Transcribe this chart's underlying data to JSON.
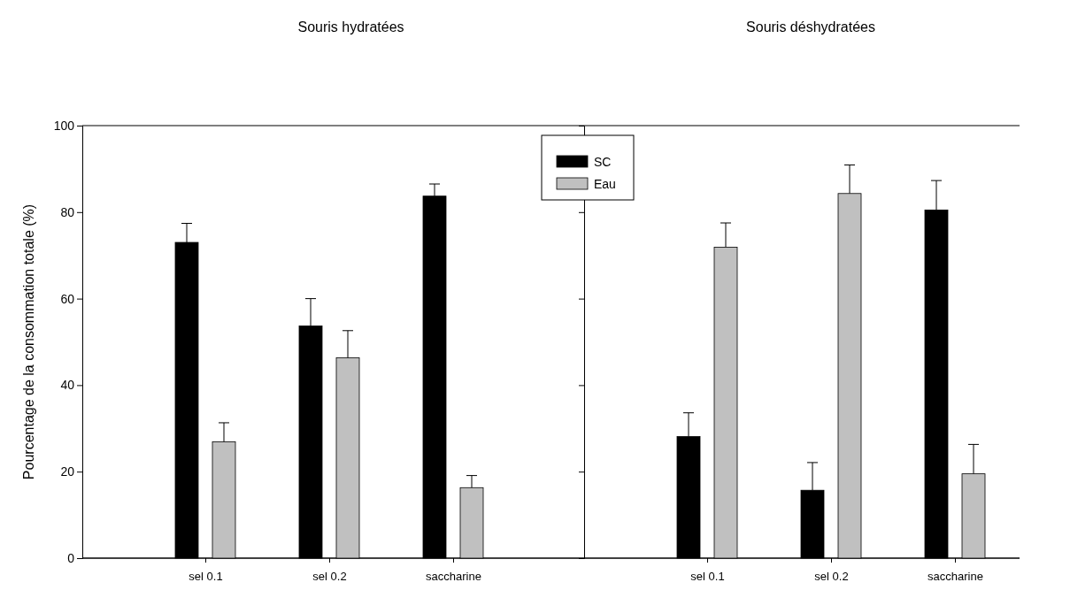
{
  "chart_data": [
    {
      "type": "bar",
      "title": "Souris hydratées",
      "ylabel": "Pourcentage de la consommation totale (%)",
      "categories": [
        "sel 0.1",
        "sel 0.2",
        "saccharine"
      ],
      "ylim": [
        0,
        100
      ],
      "yticks": [
        0,
        20,
        40,
        60,
        80,
        100
      ],
      "grid": false,
      "legend": false,
      "series": [
        {
          "color": "#000000",
          "values": [
            73.0,
            53.7,
            83.7
          ],
          "errors": [
            [
              73.0,
              77.4
            ],
            [
              53.7,
              60.0
            ],
            [
              83.7,
              86.5
            ]
          ]
        },
        {
          "color": "#c0c0c0",
          "values": [
            26.9,
            46.3,
            16.3
          ],
          "errors": [
            [
              26.9,
              31.3
            ],
            [
              46.3,
              52.6
            ],
            [
              16.3,
              19.1
            ]
          ]
        }
      ]
    },
    {
      "type": "bar",
      "title": "Souris déshydratées",
      "categories": [
        "sel 0.1",
        "sel 0.2",
        "saccharine"
      ],
      "ylim": [
        0,
        100
      ],
      "yticks": [
        0,
        20,
        40,
        60,
        80,
        100
      ],
      "tick_labels": "x",
      "grid": false,
      "legend": "top left",
      "series": [
        {
          "name": "SC",
          "color": "#000000",
          "values": [
            28.1,
            15.7,
            80.5
          ],
          "errors": [
            [
              28.1,
              33.6
            ],
            [
              15.7,
              22.1
            ],
            [
              80.5,
              87.3
            ]
          ]
        },
        {
          "name": "Eau",
          "color": "#c0c0c0",
          "values": [
            71.9,
            84.3,
            19.5
          ],
          "errors": [
            [
              71.9,
              77.5
            ],
            [
              84.3,
              90.9
            ],
            [
              19.5,
              26.3
            ]
          ]
        }
      ]
    }
  ]
}
